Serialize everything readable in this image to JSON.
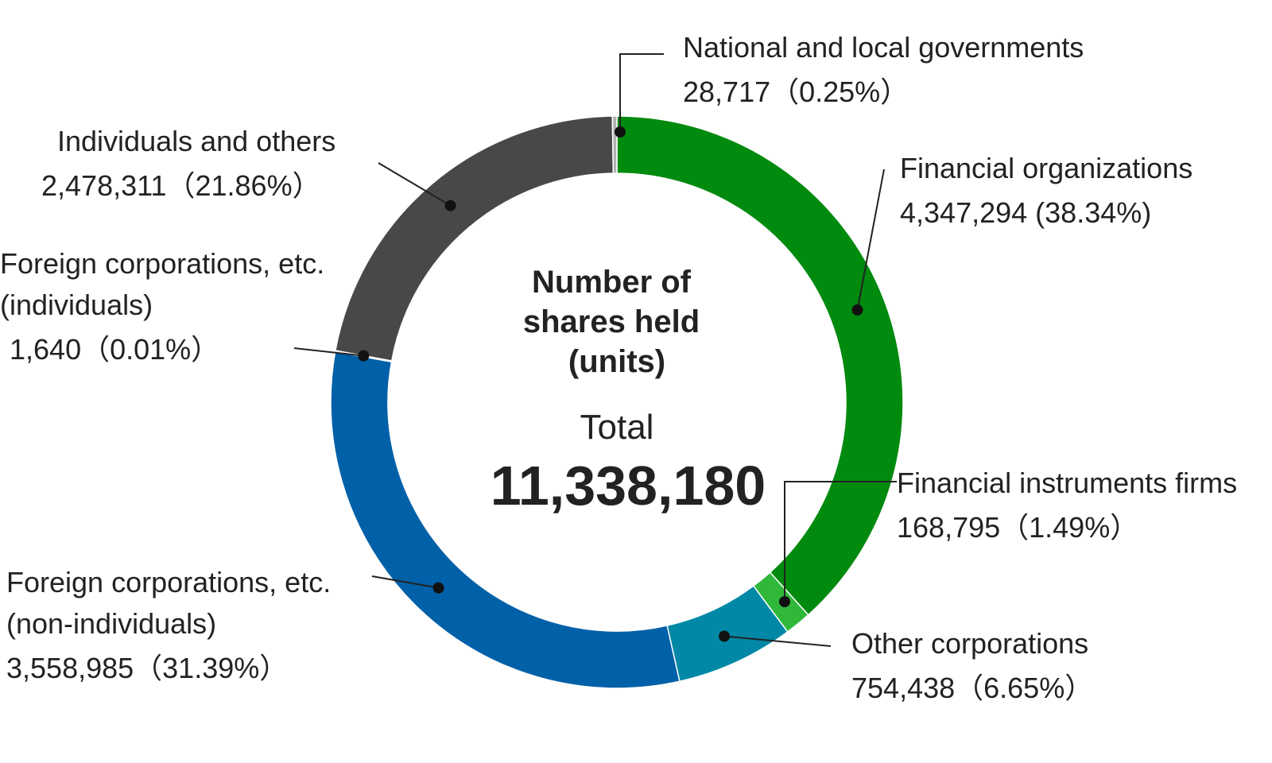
{
  "chart_data": {
    "type": "pie",
    "variant": "donut",
    "title": "Number of shares held (units)",
    "title_lines": [
      "Number of",
      "shares held",
      "(units)"
    ],
    "total_label": "Total",
    "total_value": "11,338,180",
    "total": 11338180,
    "segments": [
      {
        "id": "financial-organizations",
        "name_lines": [
          "Financial organizations"
        ],
        "value_text": "4,347,294 (38.34%)",
        "value": 4347294,
        "percent": 38.34,
        "color": "#008a0e"
      },
      {
        "id": "financial-instruments-firms",
        "name_lines": [
          "Financial instruments firms"
        ],
        "value_text": "168,795（1.49%）",
        "value": 168795,
        "percent": 1.49,
        "color": "#2fb83a"
      },
      {
        "id": "other-corporations",
        "name_lines": [
          "Other corporations"
        ],
        "value_text": "754,438（6.65%）",
        "value": 754438,
        "percent": 6.65,
        "color": "#0088a6"
      },
      {
        "id": "foreign-non-individuals",
        "name_lines": [
          "Foreign corporations, etc.",
          "(non-individuals)"
        ],
        "value_text": "3,558,985（31.39%）",
        "value": 3558985,
        "percent": 31.39,
        "color": "#0060a8"
      },
      {
        "id": "foreign-individuals",
        "name_lines": [
          "Foreign corporations, etc.",
          "(individuals)"
        ],
        "value_text": "1,640（0.01%）",
        "value": 1640,
        "percent": 0.01,
        "color": "#7a7a7a"
      },
      {
        "id": "individuals-and-others",
        "name_lines": [
          "Individuals and others"
        ],
        "value_text": "2,478,311（21.86%）",
        "value": 2478311,
        "percent": 21.86,
        "color": "#484848"
      },
      {
        "id": "national-and-local-governments",
        "name_lines": [
          "National and local governments"
        ],
        "value_text": "28,717（0.25%）",
        "value": 28717,
        "percent": 0.25,
        "color": "#b0b0b0"
      }
    ]
  }
}
